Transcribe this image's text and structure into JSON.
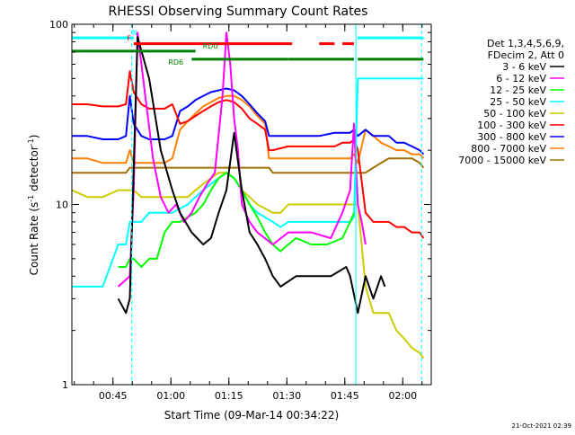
{
  "chart_data": {
    "type": "line",
    "title": "RHESSI Observing Summary Count Rates",
    "xlabel": "Start Time (09-Mar-14 00:34:22)",
    "ylabel_main": "Count Rate (s",
    "ylabel_exp1": "-1",
    "ylabel_mid": " detector",
    "ylabel_exp2": "-1",
    "ylabel_end": ")",
    "y_scale": "log",
    "ylim": [
      1,
      100
    ],
    "xlim_minutes_after_start": [
      0,
      93
    ],
    "x_ticks": [
      {
        "label": "00:45",
        "minutes": 10.63
      },
      {
        "label": "01:00",
        "minutes": 25.63
      },
      {
        "label": "01:15",
        "minutes": 40.63
      },
      {
        "label": "01:30",
        "minutes": 55.63
      },
      {
        "label": "01:45",
        "minutes": 70.63
      },
      {
        "label": "02:00",
        "minutes": 85.63
      }
    ],
    "y_ticks": [
      {
        "label": "1",
        "value": 1
      },
      {
        "label": "10",
        "value": 10
      },
      {
        "label": "100",
        "value": 100
      }
    ],
    "legend": {
      "placement": "right",
      "header": [
        "Det 1,3,4,5,6,9,",
        "FDecim 2, Att 0"
      ],
      "entries": [
        {
          "label": "3 - 6 keV",
          "color": "#000000"
        },
        {
          "label": "6 - 12 keV",
          "color": "#ff00ff"
        },
        {
          "label": "12 - 25 keV",
          "color": "#00ff00"
        },
        {
          "label": "25 - 50 keV",
          "color": "#00ffff"
        },
        {
          "label": "50 - 100 keV",
          "color": "#cccc00"
        },
        {
          "label": "100 - 300 keV",
          "color": "#ff0000"
        },
        {
          "label": "300 - 800 keV",
          "color": "#0000ff"
        },
        {
          "label": "800 - 7000 keV",
          "color": "#ff8000"
        },
        {
          "label": "7000 - 15000 keV",
          "color": "#a07000"
        }
      ]
    },
    "series": [
      {
        "name": "3 - 6 keV",
        "color": "#000000",
        "x": [
          12,
          14,
          15,
          17,
          20,
          23,
          26,
          28,
          31,
          34,
          36,
          38,
          40,
          42,
          44,
          46,
          48,
          50,
          52,
          54,
          58,
          62,
          67,
          71,
          72,
          74,
          76,
          78,
          80,
          81
        ],
        "y": [
          3,
          2.5,
          3,
          85,
          50,
          20,
          12,
          9,
          7,
          6,
          6.5,
          9,
          12,
          25,
          12,
          7,
          6,
          5,
          4,
          3.5,
          4,
          4,
          4,
          4.5,
          4,
          2.5,
          4,
          3,
          4,
          3.5
        ]
      },
      {
        "name": "6 - 12 keV",
        "color": "#ff00ff",
        "x": [
          12,
          15,
          16,
          17,
          19,
          21,
          23,
          25,
          27,
          29,
          31,
          33,
          35,
          37,
          39,
          40,
          41,
          42,
          43,
          44,
          46,
          48,
          52,
          56,
          62,
          67,
          70,
          72,
          73,
          74,
          75,
          76
        ],
        "y": [
          3.5,
          4,
          12,
          90,
          40,
          18,
          11,
          9,
          10,
          8,
          9,
          11,
          13,
          15,
          40,
          90,
          60,
          30,
          20,
          10,
          8,
          7,
          6,
          7,
          7,
          6.5,
          9,
          12,
          28,
          10,
          8,
          6
        ]
      },
      {
        "name": "12 - 25 keV",
        "color": "#00ff00",
        "x": [
          12,
          14,
          15,
          16,
          18,
          20,
          22,
          24,
          26,
          28,
          30,
          32,
          34,
          36,
          38,
          40,
          42,
          44,
          46,
          48,
          50,
          52,
          54,
          56,
          58,
          62,
          66,
          70,
          72,
          73
        ],
        "y": [
          4.5,
          4.5,
          5,
          5,
          4.5,
          5,
          5,
          7,
          8,
          8,
          8.5,
          9,
          10,
          12,
          14,
          15,
          14,
          12,
          10,
          8.5,
          7,
          6,
          5.5,
          6,
          6.5,
          6,
          6,
          6.5,
          8,
          9
        ]
      },
      {
        "name": "25 - 50 keV",
        "color": "#00ffff",
        "x": [
          0,
          4,
          8,
          12,
          14,
          15,
          16,
          18,
          20,
          24,
          26,
          28,
          30,
          32,
          34,
          36,
          38,
          40,
          42,
          44,
          46,
          48,
          50,
          52,
          54,
          56,
          60,
          64,
          68,
          70,
          72,
          73,
          74,
          76,
          78,
          80,
          82,
          84,
          86,
          88,
          90,
          91
        ],
        "y": [
          3.5,
          3.5,
          3.5,
          6,
          6,
          8,
          8,
          8,
          9,
          9,
          9,
          9.5,
          10,
          11,
          12,
          13,
          14,
          15,
          14,
          12,
          10,
          9,
          8.5,
          8,
          7.5,
          8,
          8,
          8,
          8,
          8,
          8,
          8.5,
          50,
          50,
          50,
          50,
          50,
          50,
          50,
          50,
          50,
          50
        ]
      },
      {
        "name": "50 - 100 keV",
        "color": "#cccc00",
        "x": [
          0,
          4,
          8,
          12,
          14,
          15,
          16,
          18,
          20,
          24,
          26,
          28,
          30,
          32,
          34,
          36,
          38,
          40,
          42,
          44,
          46,
          48,
          50,
          52,
          54,
          56,
          60,
          64,
          68,
          70,
          72,
          73,
          74,
          76,
          78,
          80,
          82,
          84,
          86,
          88,
          90,
          91
        ],
        "y": [
          12,
          11,
          11,
          12,
          12,
          12,
          12,
          11,
          11,
          11,
          11,
          11,
          11,
          12,
          13,
          14,
          15,
          15,
          14,
          12,
          11,
          10,
          9.5,
          9,
          9,
          10,
          10,
          10,
          10,
          10,
          10,
          10,
          10,
          3.5,
          2.5,
          2.5,
          2.5,
          2,
          1.8,
          1.6,
          1.5,
          1.4
        ]
      },
      {
        "name": "100 - 300 keV",
        "color": "#ff0000",
        "x": [
          0,
          4,
          8,
          12,
          14,
          15,
          16,
          18,
          20,
          24,
          26,
          28,
          30,
          32,
          34,
          36,
          38,
          40,
          42,
          44,
          46,
          48,
          50,
          51,
          52,
          56,
          60,
          64,
          68,
          70,
          72,
          73,
          74,
          76,
          78,
          80,
          82,
          84,
          86,
          88,
          90,
          91
        ],
        "y": [
          36,
          36,
          35,
          35,
          36,
          55,
          42,
          36,
          34,
          34,
          36,
          28,
          29,
          31,
          33,
          35,
          37,
          38,
          37,
          34,
          30,
          28,
          26,
          20,
          20,
          21,
          21,
          21,
          21,
          22,
          22,
          23,
          20,
          9,
          8,
          8,
          8,
          7.5,
          7.5,
          7,
          7,
          6.5
        ]
      },
      {
        "name": "300 - 800 keV",
        "color": "#0000ff",
        "x": [
          0,
          4,
          8,
          12,
          14,
          15,
          16,
          18,
          20,
          24,
          26,
          28,
          30,
          32,
          34,
          36,
          38,
          40,
          42,
          44,
          46,
          48,
          50,
          51,
          52,
          56,
          60,
          64,
          68,
          70,
          72,
          73,
          74,
          76,
          78,
          80,
          82,
          84,
          86,
          88,
          90,
          91
        ],
        "y": [
          24,
          24,
          23,
          23,
          24,
          40,
          28,
          24,
          23,
          23,
          24,
          33,
          35,
          38,
          40,
          42,
          43,
          44,
          43,
          40,
          36,
          32,
          29,
          24,
          24,
          24,
          24,
          24,
          25,
          25,
          25,
          26,
          24,
          26,
          24,
          24,
          24,
          22,
          22,
          21,
          20,
          19
        ]
      },
      {
        "name": "800 - 7000 keV",
        "color": "#ff8000",
        "x": [
          0,
          4,
          8,
          12,
          14,
          15,
          16,
          18,
          20,
          24,
          26,
          28,
          30,
          32,
          34,
          36,
          38,
          40,
          42,
          44,
          46,
          48,
          50,
          51,
          52,
          56,
          60,
          64,
          68,
          70,
          72,
          73,
          74,
          76,
          78,
          80,
          82,
          84,
          86,
          88,
          90,
          91
        ],
        "y": [
          18,
          18,
          17,
          17,
          17,
          20,
          17,
          17,
          17,
          17,
          18,
          26,
          29,
          32,
          35,
          37,
          39,
          40,
          40,
          38,
          35,
          31,
          28,
          18,
          18,
          18,
          18,
          18,
          18,
          18,
          18,
          19,
          17,
          26,
          24,
          22,
          21,
          20,
          20,
          19,
          19,
          18
        ]
      },
      {
        "name": "7000 - 15000 keV",
        "color": "#a07000",
        "x": [
          0,
          4,
          8,
          12,
          14,
          15,
          16,
          18,
          20,
          24,
          26,
          28,
          30,
          32,
          34,
          36,
          38,
          40,
          42,
          44,
          46,
          48,
          50,
          51,
          52,
          56,
          60,
          64,
          68,
          70,
          72,
          73,
          74,
          76,
          78,
          80,
          82,
          84,
          86,
          88,
          90,
          91
        ],
        "y": [
          15,
          15,
          15,
          15,
          15,
          16,
          16,
          16,
          16,
          16,
          16,
          16,
          16,
          16,
          16,
          16,
          16,
          16,
          16,
          16,
          16,
          16,
          16,
          16,
          15,
          15,
          15,
          15,
          15,
          15,
          15,
          15,
          15,
          15,
          16,
          17,
          18,
          18,
          18,
          18,
          17,
          16
        ]
      }
    ],
    "vertical_markers": [
      {
        "label": "",
        "minutes": 0,
        "style": "solid",
        "color": "#00ffff"
      },
      {
        "label": "",
        "minutes": 15.5,
        "style": "dashed",
        "color": "#00ffff"
      },
      {
        "label": "",
        "minutes": 73.5,
        "style": "solid",
        "color": "#00ffff"
      },
      {
        "label": "",
        "minutes": 90.5,
        "style": "dashed",
        "color": "#00ffff"
      }
    ],
    "flag_bars": [
      {
        "label": "N",
        "color": "#00ffff",
        "segments": [
          [
            0,
            16
          ],
          [
            74,
            91
          ]
        ],
        "level": 84
      },
      {
        "label": "F",
        "color": "#ff0000",
        "segments": [
          [
            16,
            57
          ],
          [
            64,
            68
          ],
          [
            70,
            73
          ]
        ],
        "level": 78
      },
      {
        "label": "RD0",
        "color": "#008000",
        "segments": [
          [
            0,
            32
          ]
        ],
        "level": 71
      },
      {
        "label": "RD6",
        "color": "#008000",
        "segments": [
          [
            31,
            56
          ],
          [
            56,
            73
          ],
          [
            74,
            91
          ]
        ],
        "level": 64
      }
    ],
    "timestamp": "21-Oct-2021 02:39"
  }
}
